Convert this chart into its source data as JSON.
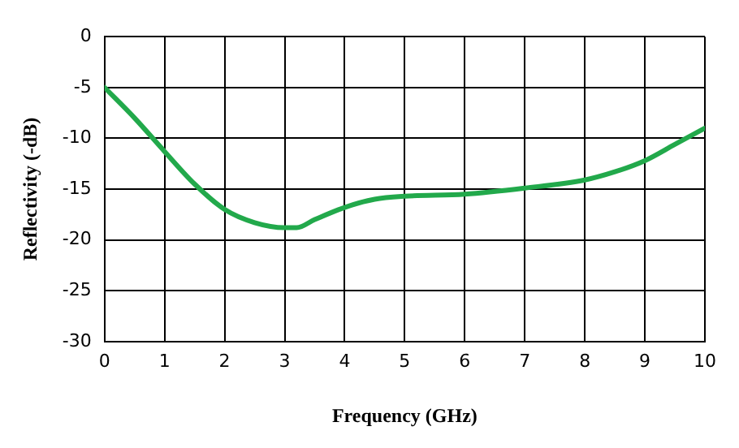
{
  "chart_data": {
    "type": "line",
    "xlabel": "Frequency (GHz)",
    "ylabel": "Reflectivity (-dB)",
    "x": [
      0,
      0.5,
      1,
      1.5,
      2,
      2.5,
      3,
      3.2,
      3.5,
      4,
      4.5,
      5,
      6,
      7,
      8,
      8.5,
      9,
      9.5,
      10
    ],
    "series": [
      {
        "color": "#22a94b",
        "values": [
          -5,
          -8,
          -11.3,
          -14.5,
          -17,
          -18.3,
          -18.8,
          -18.8,
          -18,
          -16.8,
          -16,
          -15.7,
          -15.5,
          -14.9,
          -14.1,
          -13.3,
          -12.2,
          -10.6,
          -9
        ]
      }
    ],
    "xlim": [
      0,
      10
    ],
    "xticks": [
      0,
      1,
      2,
      3,
      4,
      5,
      6,
      7,
      8,
      9,
      10
    ],
    "ylim": [
      -30,
      0
    ],
    "yticks": [
      -30,
      -25,
      -20,
      -15,
      -10,
      -5,
      0
    ],
    "grid": true,
    "legend": false,
    "marker": "none",
    "line_style": "solid"
  }
}
